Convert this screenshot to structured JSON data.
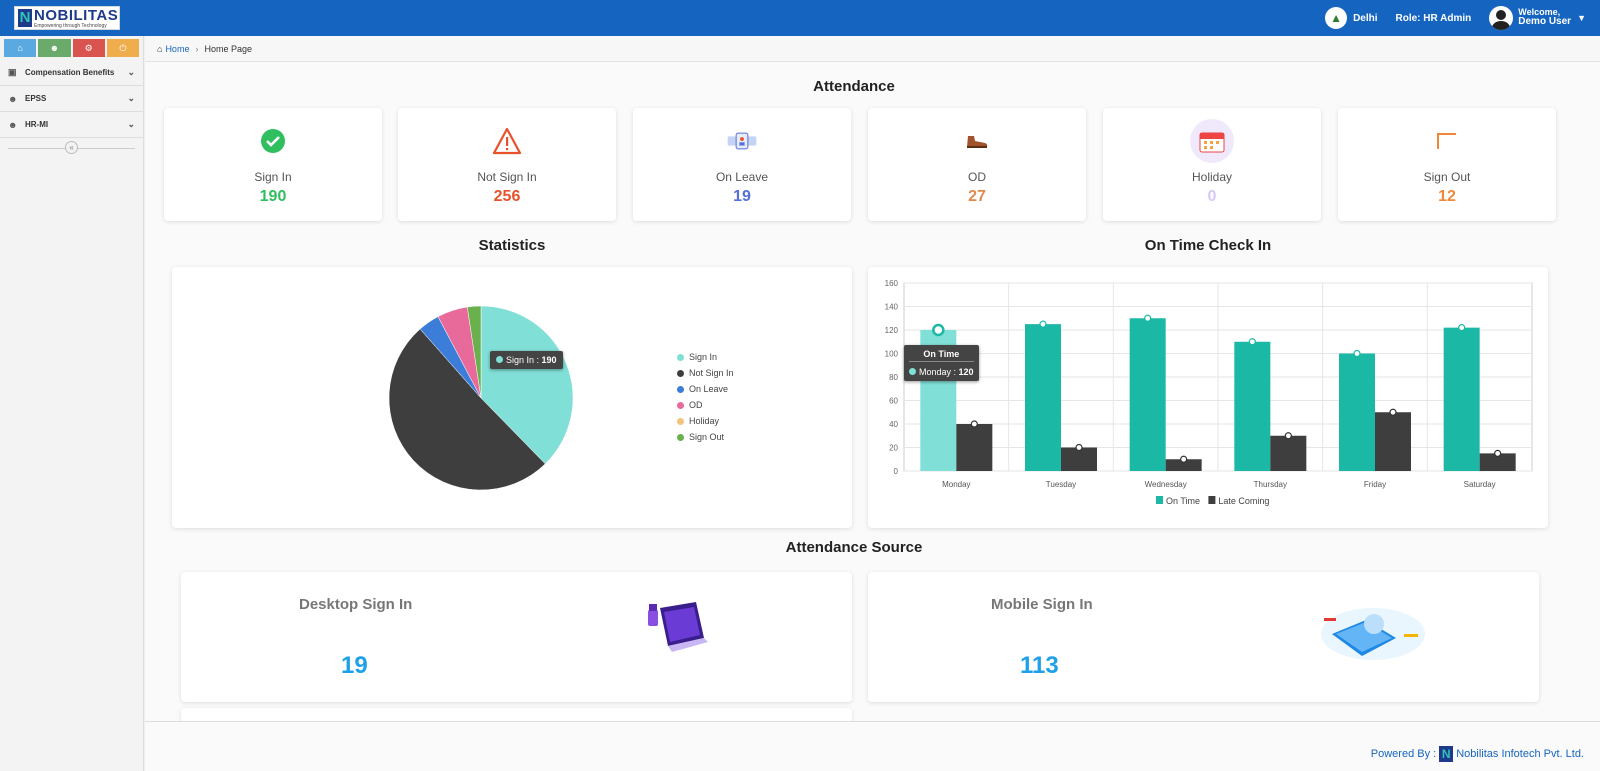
{
  "app": {
    "logo_name": "NOBILITAS",
    "logo_tagline": "Empowering through Technology",
    "location": "Delhi",
    "role": "Role: HR Admin",
    "welcome": "Welcome,",
    "user": "Demo User"
  },
  "sidebar": {
    "buttons": [
      {
        "icon": "home-icon",
        "color": "#5aa9e0"
      },
      {
        "icon": "users-icon",
        "color": "#6aaa6a"
      },
      {
        "icon": "gears-icon",
        "color": "#d9534f"
      },
      {
        "icon": "power-icon",
        "color": "#f0ad4e"
      }
    ],
    "items": [
      {
        "label": "Compensation Benefits",
        "icon": "money-icon"
      },
      {
        "label": "EPSS",
        "icon": "users-icon"
      },
      {
        "label": "HR-MI",
        "icon": "users-icon"
      }
    ],
    "collapse_glyph": "«"
  },
  "breadcrumb": {
    "home": "Home",
    "current": "Home Page"
  },
  "attendance": {
    "title": "Attendance",
    "cards": [
      {
        "label": "Sign In",
        "value": "190",
        "color": "#2fbf5f",
        "icon": "check-circle-icon"
      },
      {
        "label": "Not Sign In",
        "value": "256",
        "color": "#e8522a",
        "icon": "warning-icon"
      },
      {
        "label": "On Leave",
        "value": "19",
        "color": "#5470d6",
        "icon": "leave-icon"
      },
      {
        "label": "OD",
        "value": "27",
        "color": "#e08a4e",
        "icon": "shoe-icon"
      },
      {
        "label": "Holiday",
        "value": "0",
        "color": "#d6c8f5",
        "icon": "calendar-icon"
      },
      {
        "label": "Sign Out",
        "value": "12",
        "color": "#f0883a",
        "icon": "sign-out-icon"
      }
    ]
  },
  "statistics": {
    "title": "Statistics",
    "tooltip_label": "Sign In : ",
    "tooltip_value": "190"
  },
  "ontime": {
    "title": "On Time Check In",
    "tooltip_title": "On Time",
    "tooltip_label": "Monday : ",
    "tooltip_value": "120"
  },
  "chart_data": [
    {
      "type": "pie",
      "labels": [
        "Sign In",
        "Not Sign In",
        "On Leave",
        "OD",
        "Holiday",
        "Sign Out"
      ],
      "values": [
        190,
        256,
        19,
        27,
        0,
        12
      ],
      "colors": [
        "#80dfd7",
        "#3e3e3e",
        "#3b7dd8",
        "#e86a9a",
        "#f4c27a",
        "#6ab04c"
      ],
      "legend": "right"
    },
    {
      "type": "bar",
      "categories": [
        "Monday",
        "Tuesday",
        "Wednesday",
        "Thursday",
        "Friday",
        "Saturday"
      ],
      "series": [
        {
          "name": "On Time",
          "values": [
            120,
            125,
            130,
            110,
            100,
            122
          ],
          "color": "#1bb8a6"
        },
        {
          "name": "Late Coming",
          "values": [
            40,
            20,
            10,
            30,
            50,
            15
          ],
          "color": "#3e3e3e"
        }
      ],
      "ylim": [
        0,
        160
      ],
      "yticks": [
        "0",
        "20",
        "40",
        "60",
        "80",
        "100",
        "120",
        "140",
        "160"
      ],
      "grid": true,
      "legend": "bottom"
    }
  ],
  "source": {
    "title": "Attendance Source",
    "desktop_label": "Desktop Sign In",
    "desktop_value": "19",
    "mobile_label": "Mobile Sign In",
    "mobile_value": "113"
  },
  "footer": {
    "powered": "Powered By :",
    "company": "Nobilitas Infotech Pvt. Ltd."
  }
}
